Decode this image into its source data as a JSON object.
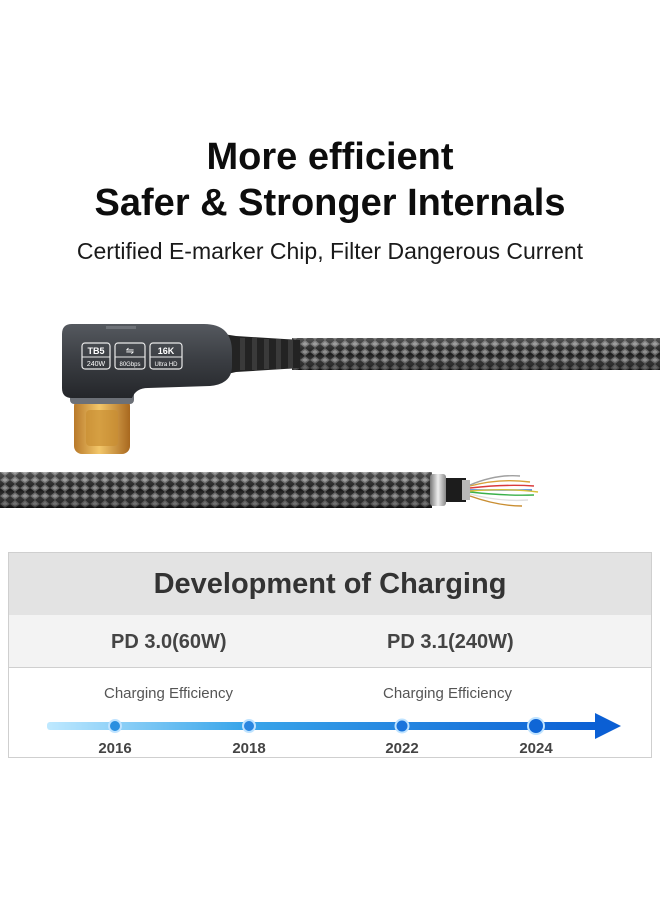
{
  "headline": {
    "line1": "More efficient",
    "line2": "Safer & Stronger Internals",
    "subtitle": "Certified E-marker Chip, Filter Dangerous Current"
  },
  "connector_badges": [
    {
      "top": "TB5",
      "bottom": "240W"
    },
    {
      "top": "⇋",
      "bottom": "80Gbps"
    },
    {
      "top": "16K",
      "bottom": "Ultra HD"
    }
  ],
  "development": {
    "title": "Development of Charging",
    "standards": [
      "PD 3.0(60W)",
      "PD 3.1(240W)"
    ],
    "efficiency_labels": [
      "Charging Efficiency",
      "Charging Efficiency"
    ],
    "years": [
      "2016",
      "2018",
      "2022",
      "2024"
    ]
  },
  "colors": {
    "timeline_start": "#bfe9ff",
    "timeline_end": "#0b5fd4",
    "cable_dark": "#1b1b1b",
    "cable_light": "#8a8a8a",
    "connector_body": "#3a3d42",
    "gold": "#d9a03a"
  }
}
